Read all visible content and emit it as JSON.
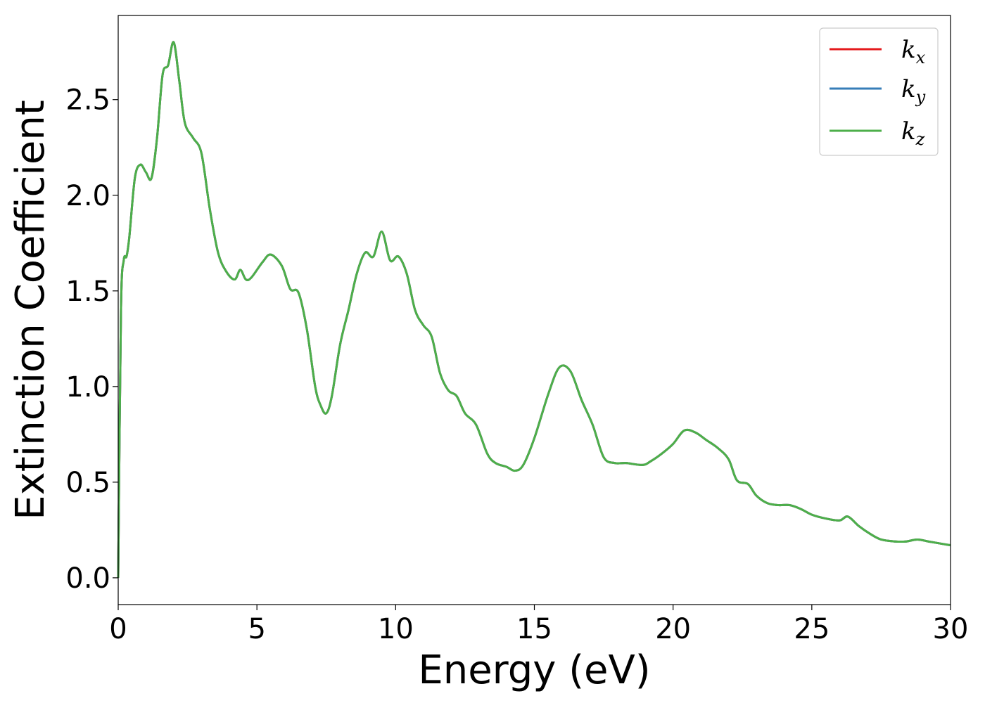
{
  "chart_data": {
    "type": "line",
    "title": "",
    "xlabel": "Energy (eV)",
    "ylabel": "Extinction Coefficient",
    "xlim": [
      0,
      30
    ],
    "ylim": [
      -0.14,
      2.94
    ],
    "xticks": [
      "0",
      "5",
      "10",
      "15",
      "20",
      "25",
      "30"
    ],
    "yticks": [
      "0.0",
      "0.5",
      "1.0",
      "1.5",
      "2.0",
      "2.5"
    ],
    "xtick_values": [
      0,
      5,
      10,
      15,
      20,
      25,
      30
    ],
    "ytick_values": [
      0.0,
      0.5,
      1.0,
      1.5,
      2.0,
      2.5
    ],
    "grid": false,
    "legend_position": "top-right",
    "colors": {
      "k_x": "#e41a1c",
      "k_y": "#377eb8",
      "k_z": "#4daf4a"
    },
    "x": [
      0,
      0.1,
      0.2,
      0.3,
      0.4,
      0.6,
      0.8,
      1.0,
      1.2,
      1.4,
      1.6,
      1.8,
      2.0,
      2.2,
      2.4,
      2.7,
      3.0,
      3.3,
      3.6,
      3.9,
      4.2,
      4.4,
      4.6,
      4.8,
      5.2,
      5.5,
      5.9,
      6.2,
      6.5,
      6.8,
      7.1,
      7.3,
      7.5,
      7.7,
      8.0,
      8.3,
      8.6,
      8.9,
      9.2,
      9.5,
      9.8,
      10.1,
      10.4,
      10.7,
      11.0,
      11.3,
      11.6,
      11.9,
      12.2,
      12.5,
      12.9,
      13.3,
      13.6,
      14.0,
      14.3,
      14.6,
      15.0,
      15.5,
      15.9,
      16.3,
      16.7,
      17.1,
      17.5,
      17.9,
      18.3,
      18.9,
      19.2,
      19.6,
      20.0,
      20.4,
      20.8,
      21.2,
      21.6,
      22.0,
      22.3,
      22.7,
      23.0,
      23.4,
      23.8,
      24.2,
      24.6,
      25.0,
      25.5,
      26.0,
      26.3,
      26.7,
      27.1,
      27.5,
      28.0,
      28.4,
      28.8,
      29.2,
      29.6,
      30.0
    ],
    "series": [
      {
        "name": "k_x",
        "values": [
          0.0,
          1.4,
          1.66,
          1.68,
          1.78,
          2.09,
          2.16,
          2.12,
          2.09,
          2.3,
          2.63,
          2.68,
          2.8,
          2.6,
          2.38,
          2.3,
          2.22,
          1.93,
          1.7,
          1.6,
          1.56,
          1.61,
          1.56,
          1.57,
          1.65,
          1.69,
          1.63,
          1.51,
          1.49,
          1.3,
          1.0,
          0.9,
          0.86,
          0.95,
          1.22,
          1.4,
          1.59,
          1.7,
          1.68,
          1.81,
          1.66,
          1.68,
          1.59,
          1.4,
          1.32,
          1.26,
          1.07,
          0.98,
          0.95,
          0.86,
          0.8,
          0.65,
          0.6,
          0.58,
          0.56,
          0.59,
          0.73,
          0.96,
          1.1,
          1.08,
          0.93,
          0.8,
          0.63,
          0.6,
          0.6,
          0.59,
          0.61,
          0.65,
          0.7,
          0.77,
          0.76,
          0.72,
          0.68,
          0.62,
          0.51,
          0.49,
          0.43,
          0.39,
          0.38,
          0.38,
          0.36,
          0.33,
          0.31,
          0.3,
          0.32,
          0.27,
          0.23,
          0.2,
          0.19,
          0.19,
          0.2,
          0.19,
          0.18,
          0.17
        ]
      },
      {
        "name": "k_y",
        "values": [
          0.0,
          1.4,
          1.66,
          1.68,
          1.78,
          2.09,
          2.16,
          2.12,
          2.09,
          2.3,
          2.63,
          2.68,
          2.8,
          2.6,
          2.38,
          2.3,
          2.22,
          1.93,
          1.7,
          1.6,
          1.56,
          1.61,
          1.56,
          1.57,
          1.65,
          1.69,
          1.63,
          1.51,
          1.49,
          1.3,
          1.0,
          0.9,
          0.86,
          0.95,
          1.22,
          1.4,
          1.59,
          1.7,
          1.68,
          1.81,
          1.66,
          1.68,
          1.59,
          1.4,
          1.32,
          1.26,
          1.07,
          0.98,
          0.95,
          0.86,
          0.8,
          0.65,
          0.6,
          0.58,
          0.56,
          0.59,
          0.73,
          0.96,
          1.1,
          1.08,
          0.93,
          0.8,
          0.63,
          0.6,
          0.6,
          0.59,
          0.61,
          0.65,
          0.7,
          0.77,
          0.76,
          0.72,
          0.68,
          0.62,
          0.51,
          0.49,
          0.43,
          0.39,
          0.38,
          0.38,
          0.36,
          0.33,
          0.31,
          0.3,
          0.32,
          0.27,
          0.23,
          0.2,
          0.19,
          0.19,
          0.2,
          0.19,
          0.18,
          0.17
        ]
      },
      {
        "name": "k_z",
        "values": [
          0.0,
          1.4,
          1.66,
          1.68,
          1.78,
          2.09,
          2.16,
          2.12,
          2.09,
          2.3,
          2.63,
          2.68,
          2.8,
          2.6,
          2.38,
          2.3,
          2.22,
          1.93,
          1.7,
          1.6,
          1.56,
          1.61,
          1.56,
          1.57,
          1.65,
          1.69,
          1.63,
          1.51,
          1.49,
          1.3,
          1.0,
          0.9,
          0.86,
          0.95,
          1.22,
          1.4,
          1.59,
          1.7,
          1.68,
          1.81,
          1.66,
          1.68,
          1.59,
          1.4,
          1.32,
          1.26,
          1.07,
          0.98,
          0.95,
          0.86,
          0.8,
          0.65,
          0.6,
          0.58,
          0.56,
          0.59,
          0.73,
          0.96,
          1.1,
          1.08,
          0.93,
          0.8,
          0.63,
          0.6,
          0.6,
          0.59,
          0.61,
          0.65,
          0.7,
          0.77,
          0.76,
          0.72,
          0.68,
          0.62,
          0.51,
          0.49,
          0.43,
          0.39,
          0.38,
          0.38,
          0.36,
          0.33,
          0.31,
          0.3,
          0.32,
          0.27,
          0.23,
          0.2,
          0.19,
          0.19,
          0.2,
          0.19,
          0.18,
          0.17
        ]
      }
    ],
    "legend": [
      {
        "symbol": "k",
        "sub": "x",
        "series": "k_x"
      },
      {
        "symbol": "k",
        "sub": "y",
        "series": "k_y"
      },
      {
        "symbol": "k",
        "sub": "z",
        "series": "k_z"
      }
    ]
  }
}
